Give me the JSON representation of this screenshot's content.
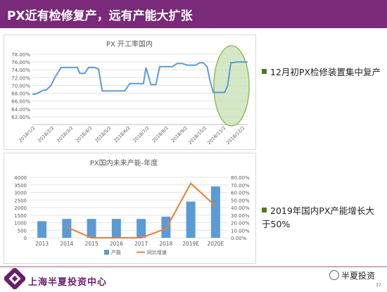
{
  "slide": {
    "title": "PX近有检修复产，远有产能大扩张",
    "company": "上海半夏投资中心",
    "brand": "半夏投资",
    "page_number": "37",
    "accent_color": "#7a2a78"
  },
  "bullets": [
    {
      "text": "12月初PX检修装置集中复产"
    },
    {
      "text": "2019年国内PX产能增长大于50%"
    }
  ],
  "chart_data": [
    {
      "type": "line",
      "title": "PX 开工率国内",
      "color": "#5b9bd5",
      "highlight_color": "#c6e0b4",
      "ylim": [
        0.6,
        0.78
      ],
      "y_ticks": [
        "62.00%",
        "64.00%",
        "66.00%",
        "68.00%",
        "70.00%",
        "72.00%",
        "74.00%",
        "76.00%",
        "78.00%"
      ],
      "y_tick_values": [
        0.62,
        0.64,
        0.66,
        0.68,
        0.7,
        0.72,
        0.74,
        0.76,
        0.78
      ],
      "x_ticks": [
        "2018/1/2",
        "2018/2/2",
        "2018/3/2",
        "2018/4/2",
        "2018/5/2",
        "2018/6/2",
        "2018/7/2",
        "2018/8/2",
        "2018/9/2",
        "2018/10/2",
        "2018/11/2",
        "2018/12/2"
      ],
      "x_max_day": 345,
      "series": [
        {
          "x": [
            0,
            5,
            12,
            18,
            22,
            30,
            36,
            46,
            56,
            66,
            72,
            76,
            84,
            90,
            100,
            106,
            112,
            120,
            132,
            140,
            148,
            156,
            162,
            167,
            172,
            178,
            182,
            190,
            198,
            204,
            214,
            224,
            232,
            240,
            248,
            256,
            262,
            268,
            274,
            280,
            285,
            290,
            300,
            308,
            313,
            318,
            328,
            336,
            345
          ],
          "y": [
            0.678,
            0.678,
            0.683,
            0.688,
            0.688,
            0.7,
            0.72,
            0.746,
            0.746,
            0.746,
            0.746,
            0.731,
            0.731,
            0.746,
            0.746,
            0.742,
            0.686,
            0.686,
            0.686,
            0.686,
            0.686,
            0.705,
            0.705,
            0.705,
            0.705,
            0.705,
            0.746,
            0.702,
            0.702,
            0.748,
            0.748,
            0.748,
            0.756,
            0.756,
            0.752,
            0.752,
            0.752,
            0.758,
            0.758,
            0.748,
            0.71,
            0.682,
            0.682,
            0.682,
            0.7,
            0.758,
            0.76,
            0.76,
            0.76
          ]
        }
      ]
    },
    {
      "type": "bar",
      "title": "PX国内未来产能-年度",
      "categories": [
        "2013",
        "2014",
        "2015",
        "2016",
        "2017",
        "2018",
        "2019E",
        "2020E"
      ],
      "ylim_left": [
        0,
        4000
      ],
      "ylim_right": [
        0,
        0.8
      ],
      "left_ticks": [
        "0",
        "500",
        "1000",
        "1500",
        "2000",
        "2500",
        "3000",
        "3500",
        "4000"
      ],
      "left_tick_values": [
        0,
        500,
        1000,
        1500,
        2000,
        2500,
        3000,
        3500,
        4000
      ],
      "right_ticks": [
        "0.00%",
        "10.00%",
        "20.00%",
        "30.00%",
        "40.00%",
        "50.00%",
        "60.00%",
        "70.00%",
        "80.00%"
      ],
      "right_tick_values": [
        0,
        0.1,
        0.2,
        0.3,
        0.4,
        0.5,
        0.6,
        0.7,
        0.8
      ],
      "series": [
        {
          "name": "产能",
          "kind": "bar",
          "axis": "left",
          "color": "#5b9bd5",
          "values": [
            1100,
            1250,
            1250,
            1250,
            1250,
            1400,
            2400,
            3400
          ]
        },
        {
          "name": "同比增速",
          "kind": "line",
          "axis": "right",
          "color": "#ed7d31",
          "values": [
            null,
            0.14,
            0.0,
            0.0,
            0.0,
            0.12,
            0.72,
            0.42
          ]
        }
      ]
    }
  ]
}
